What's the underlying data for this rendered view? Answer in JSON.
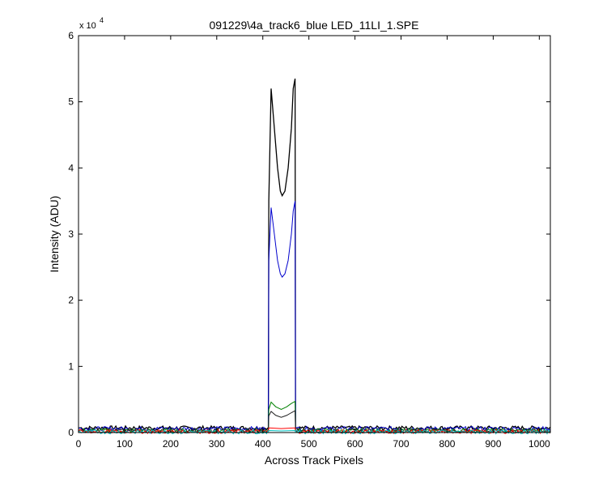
{
  "chart_data": {
    "type": "line",
    "title": "091229\\4a_track6_blue LED_11LI_1.SPE",
    "xlabel": "Across Track Pixels",
    "ylabel": "Intensity (ADU)",
    "y_multiplier_label": "x 10",
    "y_multiplier_exponent": "4",
    "xlim": [
      0,
      1024
    ],
    "ylim": [
      0,
      60000
    ],
    "x_ticks": [
      0,
      100,
      200,
      300,
      400,
      500,
      600,
      700,
      800,
      900,
      1000
    ],
    "x_tick_labels": [
      "0",
      "100",
      "200",
      "300",
      "400",
      "500",
      "600",
      "700",
      "800",
      "900",
      "1000"
    ],
    "y_ticks": [
      0,
      10000,
      20000,
      30000,
      40000,
      50000,
      60000
    ],
    "y_tick_labels": [
      "0",
      "1",
      "2",
      "3",
      "4",
      "5",
      "6"
    ],
    "grid": false,
    "legend": "none",
    "series": [
      {
        "color": "#000000",
        "baseline": 700,
        "x": [
          0,
          412,
          413,
          418,
          425,
          432,
          438,
          442,
          448,
          455,
          462,
          466,
          470,
          471,
          1024
        ],
        "values": [
          700,
          700,
          35000,
          52000,
          46000,
          40000,
          36500,
          35800,
          36500,
          40000,
          46000,
          52000,
          53500,
          700,
          700
        ]
      },
      {
        "color": "#0000cc",
        "baseline": 600,
        "x": [
          0,
          412,
          413,
          418,
          425,
          432,
          438,
          442,
          448,
          455,
          462,
          466,
          470,
          471,
          1024
        ],
        "values": [
          600,
          600,
          26000,
          34000,
          30000,
          26000,
          24000,
          23500,
          24000,
          26000,
          30000,
          33500,
          35000,
          600,
          600
        ]
      },
      {
        "color": "#008000",
        "baseline": 300,
        "x": [
          0,
          412,
          413,
          418,
          428,
          440,
          452,
          462,
          470,
          471,
          1024
        ],
        "values": [
          300,
          300,
          3500,
          4600,
          3900,
          3500,
          3900,
          4400,
          4700,
          300,
          300
        ]
      },
      {
        "color": "#222222",
        "baseline": 250,
        "x": [
          0,
          412,
          413,
          418,
          428,
          440,
          452,
          462,
          470,
          471,
          1024
        ],
        "values": [
          250,
          250,
          2500,
          3200,
          2600,
          2300,
          2600,
          3000,
          3300,
          250,
          250
        ]
      },
      {
        "color": "#ff0000",
        "baseline": 150,
        "x": [
          0,
          412,
          413,
          440,
          470,
          471,
          1024
        ],
        "values": [
          150,
          150,
          700,
          600,
          700,
          150,
          150
        ]
      },
      {
        "color": "#00bfbf",
        "baseline": 100,
        "x": [
          0,
          412,
          413,
          440,
          470,
          471,
          1024
        ],
        "values": [
          100,
          100,
          300,
          250,
          300,
          100,
          100
        ]
      }
    ]
  }
}
